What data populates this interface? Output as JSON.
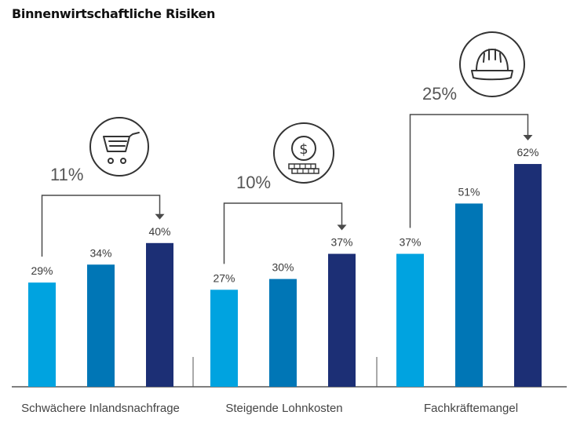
{
  "title": "Binnenwirtschaftliche Risiken",
  "chart_data": {
    "type": "bar",
    "title": "Binnenwirtschaftliche Risiken",
    "xlabel": "",
    "ylabel": "",
    "ylim": [
      0,
      100
    ],
    "grid": false,
    "legend": "none",
    "colors": [
      "#00a3e0",
      "#0076b6",
      "#1c2f75"
    ],
    "categories": [
      "Schwächere Inlandsnachfrage",
      "Steigende Lohnkosten",
      "Fachkräftemangel"
    ],
    "groups": [
      {
        "category": "Schwächere Inlandsnachfrage",
        "values": [
          29,
          34,
          40
        ],
        "labels": [
          "29%",
          "34%",
          "40%"
        ],
        "change": 11,
        "change_label": "11%",
        "icon": "shopping-cart-icon"
      },
      {
        "category": "Steigende Lohnkosten",
        "values": [
          27,
          30,
          37
        ],
        "labels": [
          "27%",
          "30%",
          "37%"
        ],
        "change": 10,
        "change_label": "10%",
        "icon": "dollar-coins-icon"
      },
      {
        "category": "Fachkräftemangel",
        "values": [
          37,
          51,
          62
        ],
        "labels": [
          "37%",
          "51%",
          "62%"
        ],
        "change": 25,
        "change_label": "25%",
        "icon": "hard-hat-icon"
      }
    ]
  }
}
